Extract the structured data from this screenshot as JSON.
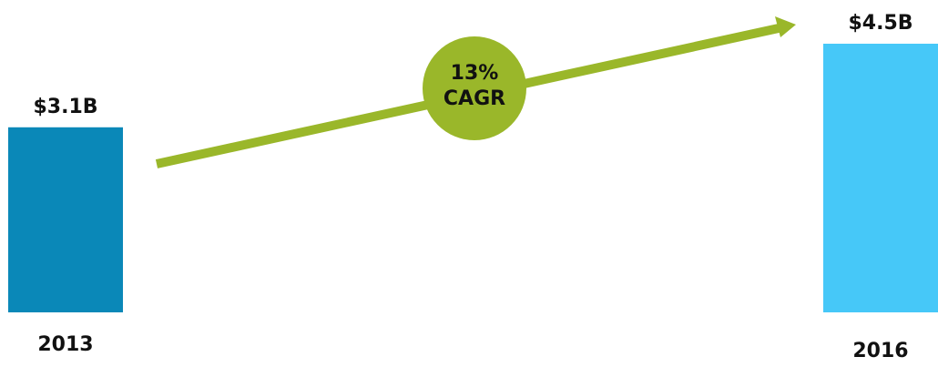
{
  "chart_data": {
    "type": "bar",
    "categories": [
      "2013",
      "2016"
    ],
    "values": [
      3.1,
      4.5
    ],
    "value_labels": [
      "$3.1B",
      "$4.5B"
    ],
    "ylim": [
      0,
      4.5
    ],
    "grid": false,
    "bar_colors": [
      "#0a88b8",
      "#46c8f8"
    ],
    "annotation": {
      "lines": [
        "13%",
        "CAGR"
      ],
      "circle_color": "#9ab72a",
      "arrow_color": "#9ab72a"
    }
  }
}
